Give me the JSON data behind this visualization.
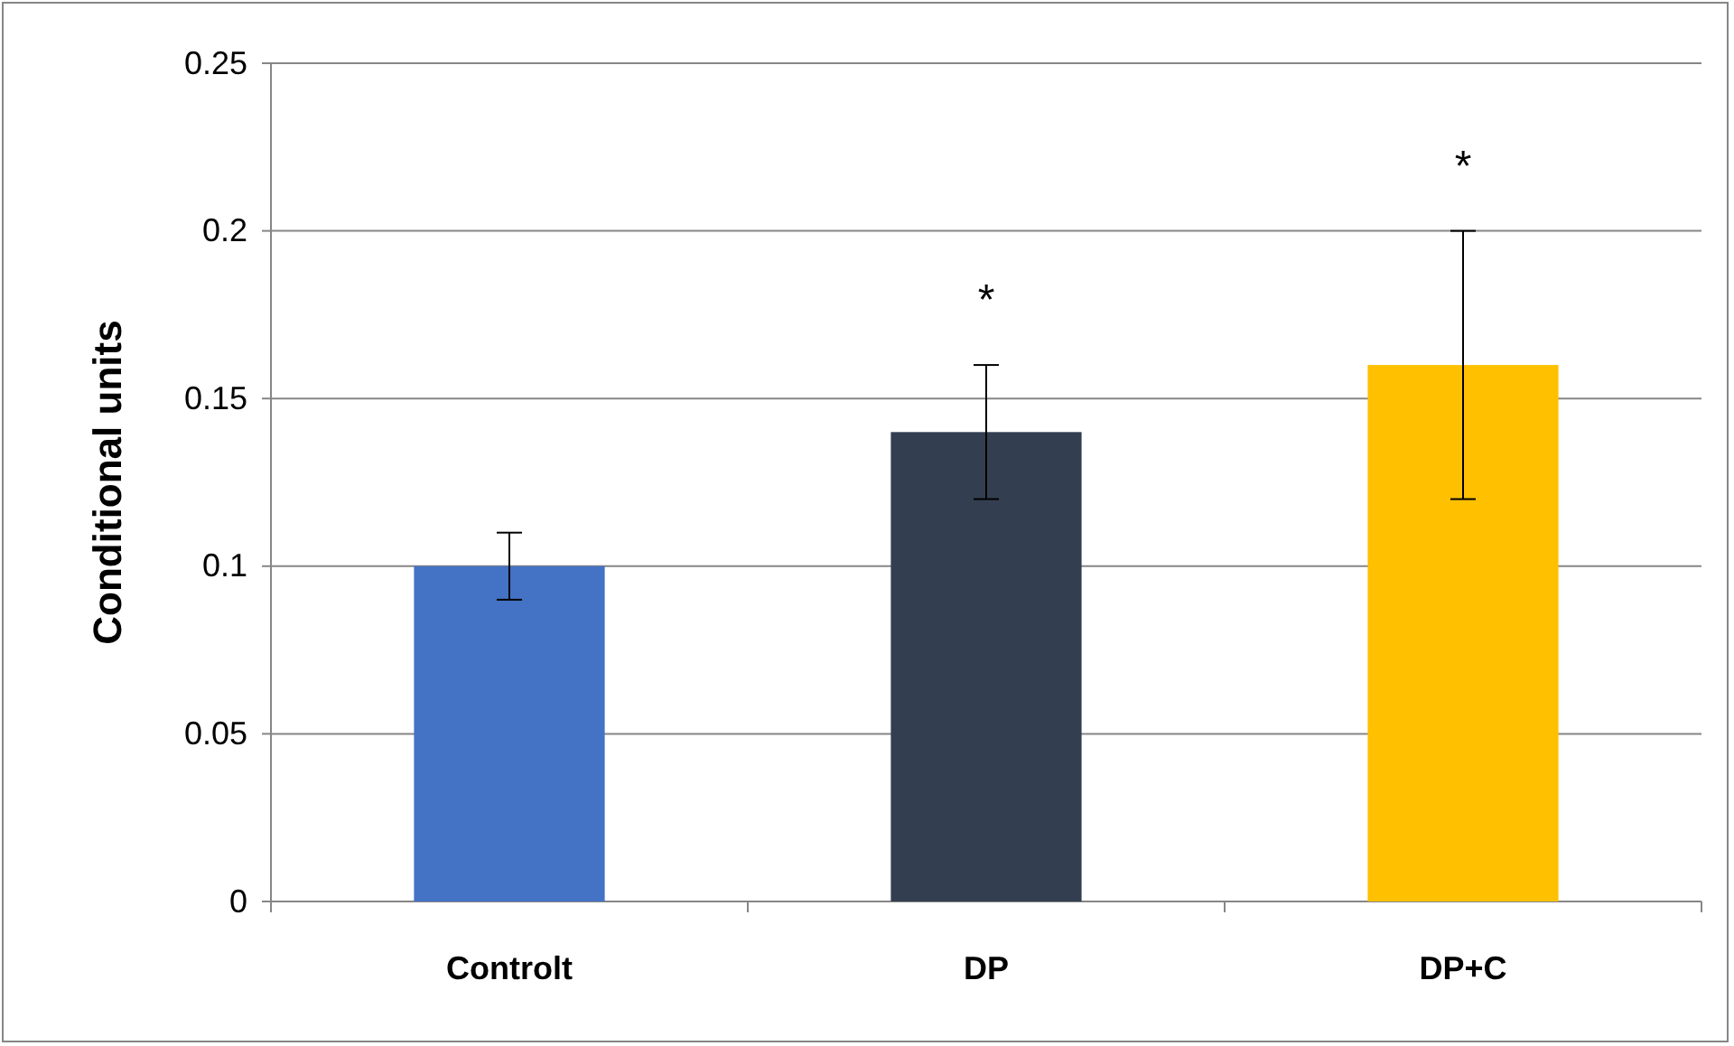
{
  "chart_data": {
    "type": "bar",
    "ylabel": "Conditional units",
    "categories": [
      "Controlt",
      "DP",
      "DP+C"
    ],
    "values": [
      0.1,
      0.14,
      0.16
    ],
    "colors": [
      "#4472c4",
      "#333f50",
      "#ffc000"
    ],
    "errors": [
      0.01,
      0.02,
      0.04
    ],
    "ylim": [
      0,
      0.25
    ],
    "yticks": [
      0,
      0.05,
      0.1,
      0.15,
      0.2,
      0.25
    ],
    "grid": "y",
    "annotations": [
      "*",
      "*"
    ]
  }
}
